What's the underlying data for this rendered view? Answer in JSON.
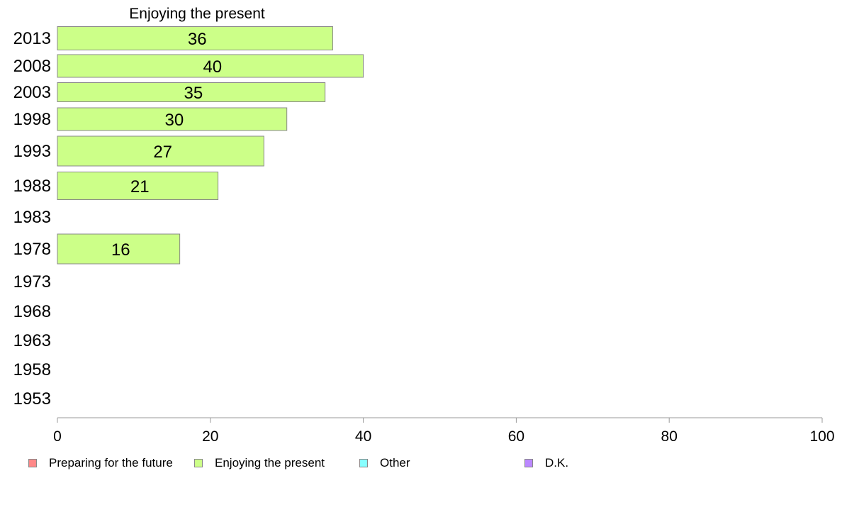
{
  "chart_data": {
    "type": "bar",
    "orientation": "horizontal",
    "title": "Enjoying the present",
    "xlabel": "",
    "ylabel": "",
    "xlim": [
      0,
      100
    ],
    "xticks": [
      "0",
      "20",
      "40",
      "60",
      "80",
      "100"
    ],
    "categories": [
      "2013",
      "2008",
      "2003",
      "1998",
      "1993",
      "1988",
      "1983",
      "1978",
      "1973",
      "1968",
      "1963",
      "1958",
      "1953"
    ],
    "series": [
      {
        "name": "Enjoying the present",
        "values": [
          36,
          40,
          35,
          30,
          27,
          21,
          null,
          16,
          null,
          null,
          null,
          null,
          null
        ],
        "labels": [
          "36",
          "40",
          "35",
          "30",
          "27",
          "21",
          "",
          "16",
          "",
          "",
          "",
          "",
          ""
        ]
      }
    ],
    "bar_color": "#ccff88",
    "bar_edge": "#888888",
    "grid": false,
    "legend_position": "bottom",
    "legend": [
      {
        "label": "Preparing for the future",
        "color": "#ff8888"
      },
      {
        "label": "Enjoying the present",
        "color": "#ccff88"
      },
      {
        "label": "Other",
        "color": "#88ffff"
      },
      {
        "label": "D.K.",
        "color": "#bb88ff"
      }
    ]
  }
}
